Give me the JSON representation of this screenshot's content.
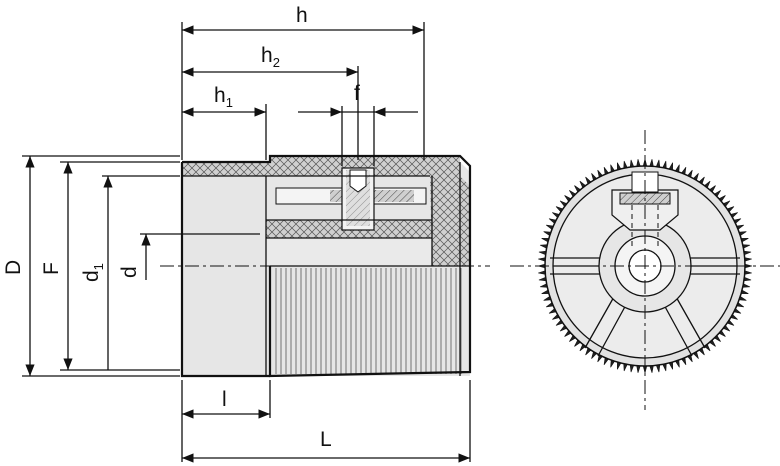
{
  "drawing": {
    "dimensions": {
      "h": "h",
      "h2_base": "h",
      "h2_sub": "2",
      "h1_base": "h",
      "h1_sub": "1",
      "f": "f",
      "D": "D",
      "F": "F",
      "d1_base": "d",
      "d1_sub": "1",
      "d": "d",
      "l": "l",
      "L": "L"
    },
    "colors": {
      "line": "#111111",
      "body": "#e6e6e6",
      "hatch": "#bdbdbd"
    }
  }
}
